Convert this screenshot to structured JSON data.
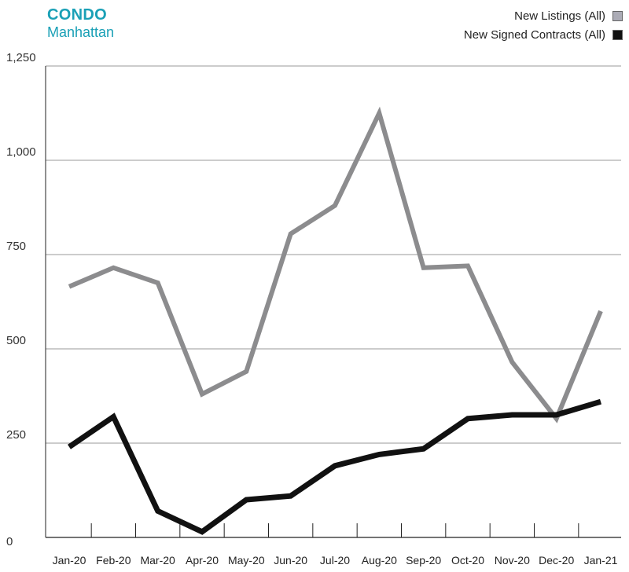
{
  "header": {
    "title": "CONDO",
    "subtitle": "Manhattan"
  },
  "legend": {
    "items": [
      {
        "label": "New Listings (All)",
        "color": "#acacb6"
      },
      {
        "label": "New Signed Contracts (All)",
        "color": "#111111"
      }
    ]
  },
  "chart_data": {
    "type": "line",
    "title": "CONDO",
    "subtitle": "Manhattan",
    "categories": [
      "Jan-20",
      "Feb-20",
      "Mar-20",
      "Apr-20",
      "May-20",
      "Jun-20",
      "Jul-20",
      "Aug-20",
      "Sep-20",
      "Oct-20",
      "Nov-20",
      "Dec-20",
      "Jan-21"
    ],
    "yticks": [
      0,
      250,
      500,
      750,
      1000,
      1250
    ],
    "ytick_labels": [
      "0",
      "250",
      "500",
      "750",
      "1,000",
      "1,250"
    ],
    "ylim": [
      0,
      1250
    ],
    "series": [
      {
        "name": "New Listings (All)",
        "color": "#8c8c8e",
        "values": [
          665,
          715,
          675,
          380,
          440,
          805,
          880,
          1125,
          715,
          720,
          465,
          315,
          600
        ]
      },
      {
        "name": "New Signed Contracts (All)",
        "color": "#111111",
        "values": [
          240,
          320,
          70,
          15,
          100,
          110,
          190,
          220,
          235,
          315,
          325,
          325,
          360
        ]
      }
    ],
    "grid": true,
    "legend_position": "top-right"
  }
}
